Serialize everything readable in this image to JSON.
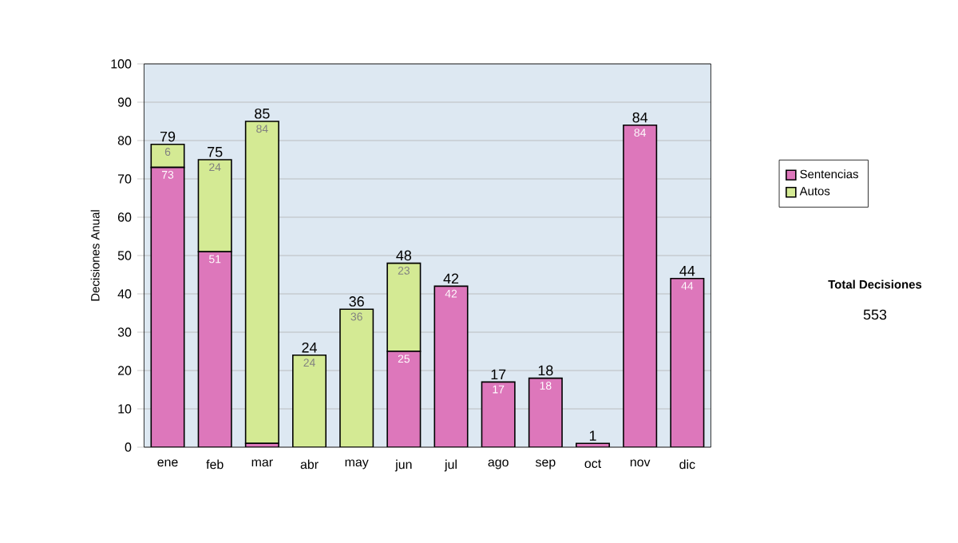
{
  "chart_data": {
    "type": "bar",
    "stacked": true,
    "ylabel": "Decisiones Anual",
    "categories": [
      "ene",
      "feb",
      "mar",
      "abr",
      "may",
      "jun",
      "jul",
      "ago",
      "sep",
      "oct",
      "nov",
      "dic"
    ],
    "series": [
      {
        "name": "Sentencias",
        "color": "#dd77bb",
        "values": [
          73,
          51,
          1,
          null,
          null,
          25,
          42,
          17,
          18,
          1,
          84,
          44
        ],
        "value_labels": [
          "73",
          "51",
          null,
          null,
          null,
          "25",
          "42",
          "17",
          "18",
          null,
          "84",
          "44"
        ]
      },
      {
        "name": "Autos",
        "color": "#d4ea94",
        "values": [
          6,
          24,
          84,
          24,
          36,
          23,
          null,
          null,
          null,
          null,
          null,
          null
        ],
        "value_labels": [
          "6",
          "24",
          "84",
          "24",
          "36",
          "23",
          null,
          null,
          null,
          null,
          null,
          null
        ]
      }
    ],
    "totals": [
      "79",
      "75",
      "85",
      "24",
      "36",
      "48",
      "42",
      "17",
      "18",
      "1",
      "84",
      "44"
    ],
    "ylim": [
      0,
      100
    ],
    "yticks": [
      0,
      10,
      20,
      30,
      40,
      50,
      60,
      70,
      80,
      90,
      100
    ],
    "grid": "y",
    "legend": "right",
    "annotations": [
      "Total Decisiones",
      "553"
    ]
  }
}
